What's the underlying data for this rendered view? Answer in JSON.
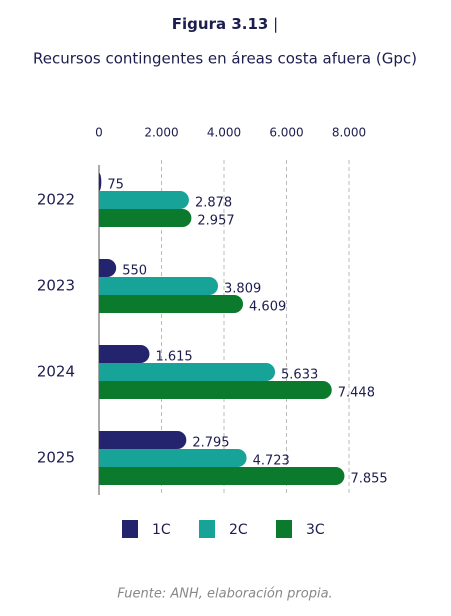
{
  "chart_data": {
    "type": "hbar",
    "title": "Figura 3.13",
    "title_separator": "|",
    "subtitle": "Recursos contingentes en áreas costa afuera (Gpc)",
    "source": "Fuente: ANH, elaboración propia.",
    "categories": [
      "2022",
      "2023",
      "2024",
      "2025"
    ],
    "series": [
      {
        "name": "1C",
        "color": "#24246e",
        "values": [
          75,
          550,
          1615,
          2795
        ],
        "value_labels": [
          "75",
          "550",
          "1.615",
          "2.795"
        ]
      },
      {
        "name": "2C",
        "color": "#17a398",
        "values": [
          2878,
          3809,
          5633,
          4723
        ],
        "value_labels": [
          "2.878",
          "3.809",
          "5.633",
          "4.723"
        ]
      },
      {
        "name": "3C",
        "color": "#0c7a2c",
        "values": [
          2957,
          4609,
          7448,
          7855
        ],
        "value_labels": [
          "2.957",
          "4.609",
          "7.448",
          "7.855"
        ]
      }
    ],
    "xlim": [
      0,
      8000
    ],
    "xticks": [
      0,
      {
        "value": 2000,
        "label": "2.000"
      },
      {
        "value": 4000,
        "label": "4.000"
      },
      {
        "value": 6000,
        "label": "6.000"
      },
      {
        "value": 8000,
        "label": "8.000"
      }
    ],
    "grid": true
  }
}
